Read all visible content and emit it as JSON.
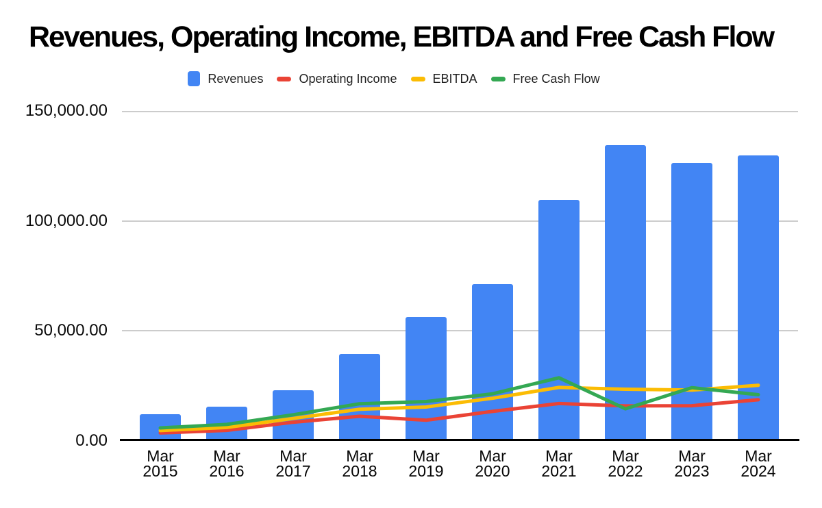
{
  "chart_data": {
    "type": "combo-bar-line",
    "title": "Revenues, Operating Income, EBITDA and Free Cash Flow",
    "categories": [
      "Mar 2015",
      "Mar 2016",
      "Mar 2017",
      "Mar 2018",
      "Mar 2019",
      "Mar 2020",
      "Mar 2021",
      "Mar 2022",
      "Mar 2023",
      "Mar 2024"
    ],
    "series": [
      {
        "name": "Revenues",
        "type": "bar",
        "color": "#4285F4",
        "values": [
          12000,
          15700,
          23100,
          39600,
          56400,
          71300,
          109600,
          134400,
          126300,
          129700
        ]
      },
      {
        "name": "Operating Income",
        "type": "line",
        "color": "#EA4335",
        "values": [
          3600,
          4800,
          8500,
          11200,
          9400,
          13400,
          17000,
          15900,
          16000,
          18700
        ]
      },
      {
        "name": "EBITDA",
        "type": "line",
        "color": "#FBBC04",
        "values": [
          4700,
          6100,
          10200,
          14400,
          15400,
          19400,
          24300,
          23500,
          23100,
          25300
        ]
      },
      {
        "name": "Free Cash Flow",
        "type": "line",
        "color": "#34A853",
        "values": [
          5900,
          7500,
          11900,
          16900,
          17900,
          21400,
          28700,
          14600,
          24200,
          21000
        ]
      }
    ],
    "ylim": [
      0,
      150000
    ],
    "yticks": [
      {
        "value": 0,
        "label": "0.00"
      },
      {
        "value": 50000,
        "label": "50,000.00"
      },
      {
        "value": 100000,
        "label": "100,000.00"
      },
      {
        "value": 150000,
        "label": "150,000.00"
      }
    ],
    "grid": true,
    "legend_position": "top",
    "axis_color": "#000000",
    "gridline_color": "#cccccc"
  }
}
